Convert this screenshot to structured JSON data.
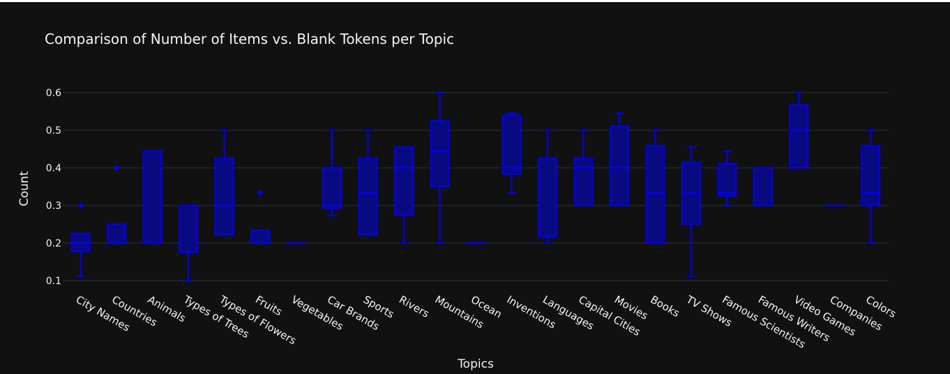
{
  "chart_data": {
    "type": "box",
    "title": "Comparison of Number of Items vs. Blank Tokens per Topic",
    "xlabel": "Topics",
    "ylabel": "Count",
    "ylim": [
      0.085,
      0.6
    ],
    "yticks": [
      0.1,
      0.2,
      0.3,
      0.4,
      0.5,
      0.6
    ],
    "ytick_labels": [
      "0.1",
      "0.2",
      "0.3",
      "0.4",
      "0.5",
      "0.6"
    ],
    "grid": true,
    "colors": {
      "background": "#111111",
      "grid": "#283442",
      "box_line": "#0000ff",
      "box_fill": "#0a0a80",
      "text": "#f2f5fa"
    },
    "categories": [
      "City Names",
      "Countries",
      "Animals",
      "Types of Trees",
      "Types of Flowers",
      "Fruits",
      "Vegetables",
      "Car Brands",
      "Sports",
      "Rivers",
      "Mountains",
      "Ocean",
      "Inventions",
      "Languages",
      "Capital Cities",
      "Movies",
      "Books",
      "TV Shows",
      "Famous Scientists",
      "Famous Writers",
      "Video Games",
      "Companies",
      "Colors"
    ],
    "boxes": [
      {
        "min": 0.111,
        "q1": 0.178,
        "median": 0.2,
        "q3": 0.225,
        "max": 0.225,
        "outliers": [
          0.3
        ]
      },
      {
        "min": 0.2,
        "q1": 0.2,
        "median": 0.2,
        "q3": 0.25,
        "max": 0.25,
        "outliers": [
          0.4
        ]
      },
      {
        "min": 0.2,
        "q1": 0.2,
        "median": 0.2,
        "q3": 0.444,
        "max": 0.444,
        "outliers": []
      },
      {
        "min": 0.1,
        "q1": 0.175,
        "median": 0.175,
        "q3": 0.3,
        "max": 0.3,
        "outliers": []
      },
      {
        "min": 0.222,
        "q1": 0.222,
        "median": 0.3,
        "q3": 0.425,
        "max": 0.5,
        "outliers": []
      },
      {
        "min": 0.2,
        "q1": 0.2,
        "median": 0.2,
        "q3": 0.233,
        "max": 0.233,
        "outliers": [
          0.333
        ]
      },
      {
        "min": 0.2,
        "q1": 0.2,
        "median": 0.2,
        "q3": 0.2,
        "max": 0.2,
        "outliers": []
      },
      {
        "min": 0.273,
        "q1": 0.292,
        "median": 0.3,
        "q3": 0.4,
        "max": 0.5,
        "outliers": []
      },
      {
        "min": 0.222,
        "q1": 0.222,
        "median": 0.333,
        "q3": 0.425,
        "max": 0.5,
        "outliers": []
      },
      {
        "min": 0.2,
        "q1": 0.275,
        "median": 0.4,
        "q3": 0.455,
        "max": 0.455,
        "outliers": []
      },
      {
        "min": 0.2,
        "q1": 0.35,
        "median": 0.444,
        "q3": 0.525,
        "max": 0.6,
        "outliers": []
      },
      {
        "min": 0.2,
        "q1": 0.2,
        "median": 0.2,
        "q3": 0.2,
        "max": 0.2,
        "outliers": []
      },
      {
        "min": 0.333,
        "q1": 0.383,
        "median": 0.4,
        "q3": 0.54,
        "max": 0.545,
        "outliers": []
      },
      {
        "min": 0.2,
        "q1": 0.217,
        "median": 0.217,
        "q3": 0.425,
        "max": 0.5,
        "outliers": []
      },
      {
        "min": 0.3,
        "q1": 0.3,
        "median": 0.4,
        "q3": 0.425,
        "max": 0.5,
        "outliers": []
      },
      {
        "min": 0.3,
        "q1": 0.3,
        "median": 0.4,
        "q3": 0.511,
        "max": 0.545,
        "outliers": []
      },
      {
        "min": 0.2,
        "q1": 0.2,
        "median": 0.333,
        "q3": 0.458,
        "max": 0.5,
        "outliers": []
      },
      {
        "min": 0.111,
        "q1": 0.25,
        "median": 0.333,
        "q3": 0.414,
        "max": 0.455,
        "outliers": []
      },
      {
        "min": 0.3,
        "q1": 0.325,
        "median": 0.333,
        "q3": 0.411,
        "max": 0.444,
        "outliers": []
      },
      {
        "min": 0.3,
        "q1": 0.3,
        "median": 0.3,
        "q3": 0.4,
        "max": 0.4,
        "outliers": []
      },
      {
        "min": 0.4,
        "q1": 0.4,
        "median": 0.5,
        "q3": 0.567,
        "max": 0.6,
        "outliers": []
      },
      {
        "min": 0.3,
        "q1": 0.3,
        "median": 0.3,
        "q3": 0.3,
        "max": 0.3,
        "outliers": []
      },
      {
        "min": 0.2,
        "q1": 0.3,
        "median": 0.333,
        "q3": 0.458,
        "max": 0.5,
        "outliers": []
      }
    ]
  }
}
